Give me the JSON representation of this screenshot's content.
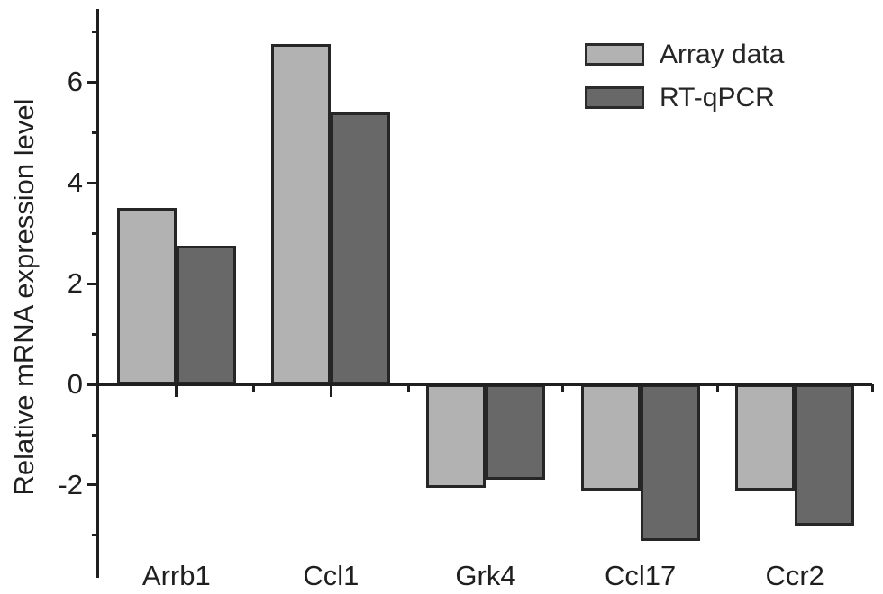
{
  "chart_data": {
    "type": "bar",
    "title": "",
    "ylabel": "Relative mRNA expression level",
    "xlabel": "",
    "categories": [
      "Arrb1",
      "Ccl1",
      "Grk4",
      "Ccl17",
      "Ccr2"
    ],
    "series": [
      {
        "name": "Array data",
        "color": "#b2b2b2",
        "values": [
          3.5,
          6.75,
          -2.05,
          -2.1,
          -2.1
        ]
      },
      {
        "name": "RT-qPCR",
        "color": "#686868",
        "values": [
          2.75,
          5.4,
          -1.9,
          -3.1,
          -2.8
        ]
      }
    ],
    "ylim": [
      -3.84,
      7.45
    ],
    "yticks_major": [
      6,
      4,
      2,
      0,
      -2
    ],
    "yticks_minor": [
      7,
      5,
      3,
      1,
      -1,
      -3
    ],
    "grid": false,
    "legend_position": "top-right",
    "bar_border_color": "#262626",
    "axis_color": "#1f1f1f",
    "text_color": "#1f1f1f"
  }
}
